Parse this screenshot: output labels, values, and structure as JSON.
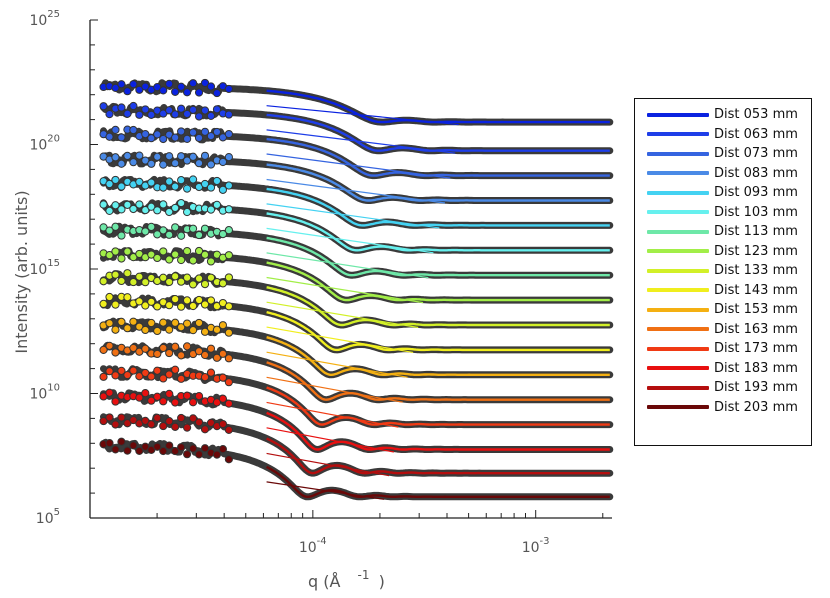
{
  "chart_data": {
    "type": "scatter",
    "scale": "log-log",
    "ylabel": "Intensity  (arb. units)",
    "xlabel_main": "q (Å",
    "xlabel_sup": "-1",
    "xlabel_close": ")",
    "xlim": [
      1e-05,
      0.0022
    ],
    "ylim_exp": [
      5,
      25
    ],
    "x_ticks": [
      {
        "base": "10",
        "exp": "-4",
        "value": 0.0001
      },
      {
        "base": "10",
        "exp": "-3",
        "value": 0.001
      }
    ],
    "y_ticks": [
      {
        "base": "10",
        "exp": "5",
        "value": 5
      },
      {
        "base": "10",
        "exp": "10",
        "value": 10
      },
      {
        "base": "10",
        "exp": "15",
        "value": 15
      },
      {
        "base": "10",
        "exp": "20",
        "value": 20
      },
      {
        "base": "10",
        "exp": "25",
        "value": 25
      }
    ],
    "series": [
      {
        "name": "Dist 053 mm",
        "color": "#0a22e0",
        "plateau_exp": 22.3,
        "floor_exp": 20.9,
        "first_min_q": 0.000205
      },
      {
        "name": "Dist 063 mm",
        "color": "#1e3ee8",
        "plateau_exp": 21.35,
        "floor_exp": 19.75,
        "first_min_q": 0.000198
      },
      {
        "name": "Dist 073 mm",
        "color": "#3564e0",
        "plateau_exp": 20.4,
        "floor_exp": 18.75,
        "first_min_q": 0.000188
      },
      {
        "name": "Dist 083 mm",
        "color": "#4a8ae6",
        "plateau_exp": 19.4,
        "floor_exp": 17.75,
        "first_min_q": 0.000178
      },
      {
        "name": "Dist 093 mm",
        "color": "#44d2f2",
        "plateau_exp": 18.45,
        "floor_exp": 16.75,
        "first_min_q": 0.000168
      },
      {
        "name": "Dist 103 mm",
        "color": "#66f0ee",
        "plateau_exp": 17.5,
        "floor_exp": 15.75,
        "first_min_q": 0.000158
      },
      {
        "name": "Dist 113 mm",
        "color": "#6ee8a8",
        "plateau_exp": 16.55,
        "floor_exp": 14.75,
        "first_min_q": 0.00015
      },
      {
        "name": "Dist 123 mm",
        "color": "#a2ee48",
        "plateau_exp": 15.6,
        "floor_exp": 13.75,
        "first_min_q": 0.000142
      },
      {
        "name": "Dist 133 mm",
        "color": "#d2f028",
        "plateau_exp": 14.65,
        "floor_exp": 12.75,
        "first_min_q": 0.000135
      },
      {
        "name": "Dist 143 mm",
        "color": "#f0ee1e",
        "plateau_exp": 13.7,
        "floor_exp": 11.75,
        "first_min_q": 0.000128
      },
      {
        "name": "Dist 153 mm",
        "color": "#f4b012",
        "plateau_exp": 12.75,
        "floor_exp": 10.75,
        "first_min_q": 0.000121
      },
      {
        "name": "Dist 163 mm",
        "color": "#f07014",
        "plateau_exp": 11.8,
        "floor_exp": 9.75,
        "first_min_q": 0.000115
      },
      {
        "name": "Dist 173 mm",
        "color": "#f03a14",
        "plateau_exp": 10.85,
        "floor_exp": 8.75,
        "first_min_q": 0.00011
      },
      {
        "name": "Dist 183 mm",
        "color": "#e81010",
        "plateau_exp": 9.9,
        "floor_exp": 7.75,
        "first_min_q": 0.000105
      },
      {
        "name": "Dist 193 mm",
        "color": "#b40e0e",
        "plateau_exp": 8.95,
        "floor_exp": 6.8,
        "first_min_q": 0.0001
      },
      {
        "name": "Dist 203 mm",
        "color": "#6a0808",
        "plateau_exp": 7.9,
        "floor_exp": 5.85,
        "first_min_q": 9.5e-05
      }
    ]
  }
}
